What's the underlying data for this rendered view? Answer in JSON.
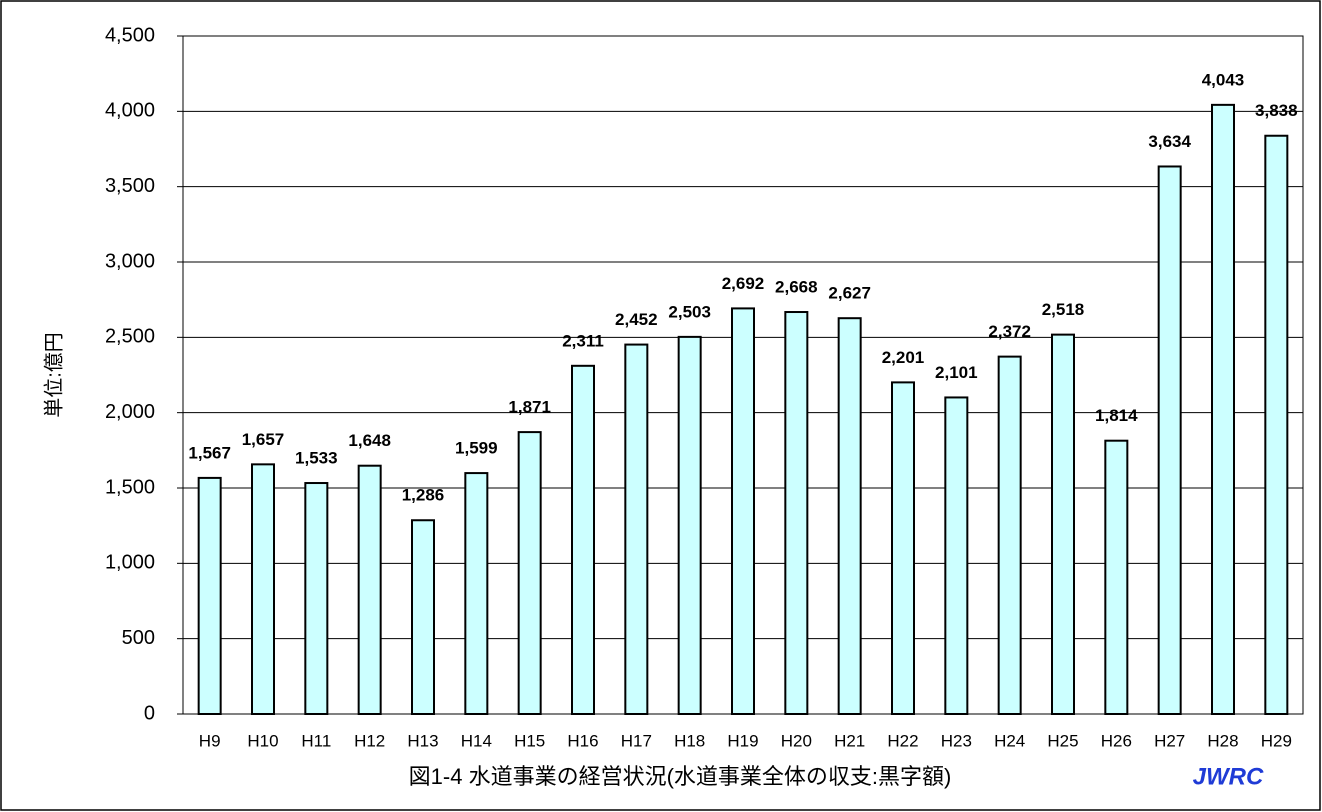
{
  "chart_data": {
    "type": "bar",
    "y_label": "単位:億円",
    "caption": "図1-4  水道事業の経営状況(水道事業全体の収支:黒字額)",
    "logo": "JWRC",
    "categories": [
      "H9",
      "H10",
      "H11",
      "H12",
      "H13",
      "H14",
      "H15",
      "H16",
      "H17",
      "H18",
      "H19",
      "H20",
      "H21",
      "H22",
      "H23",
      "H24",
      "H25",
      "H26",
      "H27",
      "H28",
      "H29"
    ],
    "values": [
      1567,
      1657,
      1533,
      1648,
      1286,
      1599,
      1871,
      2311,
      2452,
      2503,
      2692,
      2668,
      2627,
      2201,
      2101,
      2372,
      2518,
      1814,
      3634,
      4043,
      3838
    ],
    "value_labels": [
      "1,567",
      "1,657",
      "1,533",
      "1,648",
      "1,286",
      "1,599",
      "1,871",
      "2,311",
      "2,452",
      "2,503",
      "2,692",
      "2,668",
      "2,627",
      "2,201",
      "2,101",
      "2,372",
      "2,518",
      "1,814",
      "3,634",
      "4,043",
      "3,838"
    ],
    "color": "#ccffff",
    "ylim": [
      0,
      4500
    ],
    "yticks": [
      0,
      500,
      {
        "value": 1000,
        "label": "1,000"
      },
      {
        "value": 1500,
        "label": "1,500"
      },
      {
        "value": 2000,
        "label": "2,000"
      },
      {
        "value": 2500,
        "label": "2,500"
      },
      {
        "value": 3000,
        "label": "3,000"
      },
      {
        "value": 3500,
        "label": "3,500"
      },
      {
        "value": 4000,
        "label": "4,000"
      },
      {
        "value": 4500,
        "label": "4,500"
      }
    ],
    "grid": true
  }
}
